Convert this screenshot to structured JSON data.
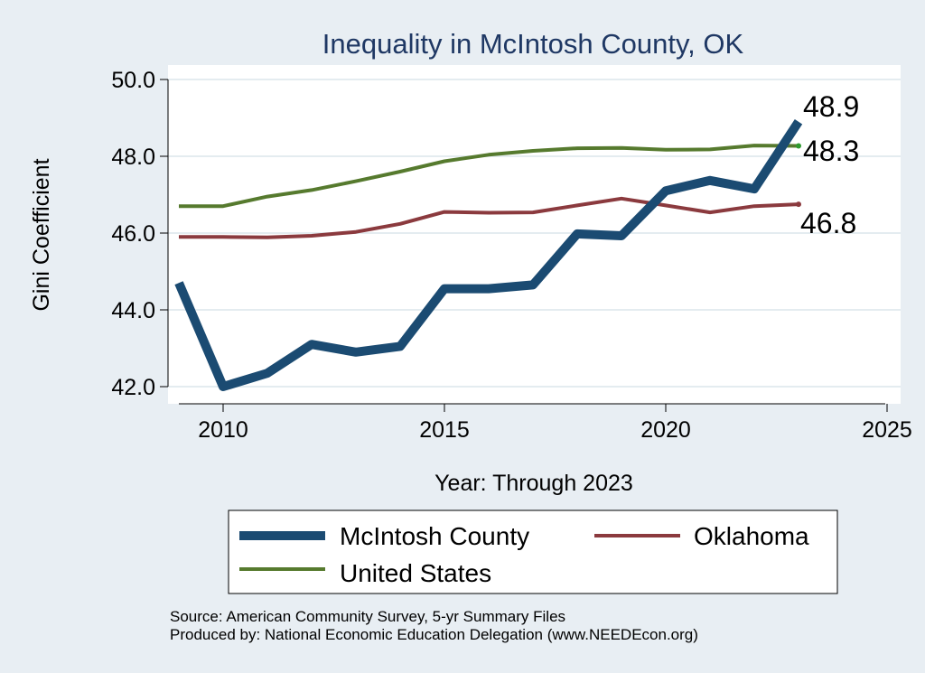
{
  "chart_data": {
    "type": "line",
    "title": "Inequality in McIntosh County, OK",
    "xlabel": "Year: Through 2023",
    "ylabel": "Gini Coefficient",
    "xlim": [
      2009,
      2025.5
    ],
    "ylim": [
      41.6,
      50.5
    ],
    "x_ticks": [
      2010,
      2015,
      2020,
      2025
    ],
    "y_ticks": [
      42,
      44,
      46,
      48,
      50
    ],
    "y_tick_labels": [
      "42.0",
      "44.0",
      "46.0",
      "48.0",
      "50.0"
    ],
    "grid": true,
    "x": [
      2009,
      2010,
      2011,
      2012,
      2013,
      2014,
      2015,
      2016,
      2017,
      2018,
      2019,
      2020,
      2021,
      2022,
      2023
    ],
    "series": [
      {
        "name": "McIntosh County",
        "color": "#1b4b72",
        "width": "thick",
        "values": [
          44.7,
          42.0,
          42.35,
          43.1,
          42.9,
          43.05,
          44.55,
          44.55,
          44.65,
          45.98,
          45.93,
          47.1,
          47.37,
          47.15,
          48.9
        ],
        "end_label": "48.9"
      },
      {
        "name": "Oklahoma",
        "color": "#8b3a3e",
        "width": "thin",
        "values": [
          45.9,
          45.9,
          45.89,
          45.93,
          46.03,
          46.24,
          46.55,
          46.53,
          46.54,
          46.72,
          46.9,
          46.72,
          46.54,
          46.7,
          46.75
        ],
        "end_label": "46.8"
      },
      {
        "name": "United States",
        "color": "#567a2e",
        "width": "thin",
        "values": [
          46.7,
          46.7,
          46.95,
          47.12,
          47.35,
          47.6,
          47.87,
          48.04,
          48.14,
          48.21,
          48.22,
          48.17,
          48.18,
          48.28,
          48.27
        ],
        "end_label": "48.3"
      }
    ],
    "legend": {
      "position": "bottom",
      "entries": [
        "McIntosh County",
        "Oklahoma",
        "United States"
      ]
    },
    "source_lines": [
      "Source: American Community Survey, 5-yr Summary Files",
      "Produced by: National Economic Education Delegation (www.NEEDEcon.org)"
    ]
  }
}
